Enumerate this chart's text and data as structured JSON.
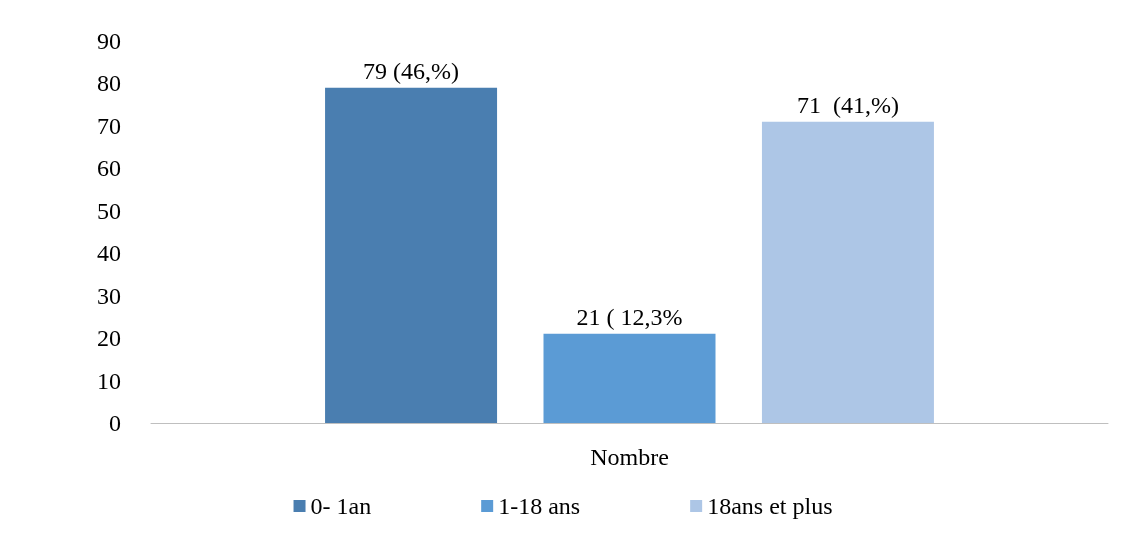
{
  "chart_data": {
    "type": "bar",
    "categories": [
      "Nombre"
    ],
    "series": [
      {
        "name": "0- 1an",
        "color": "#4a7eb0",
        "values": [
          79
        ],
        "value_labels": [
          "79 (46,%)"
        ]
      },
      {
        "name": "1-18 ans",
        "color": "#5b9bd5",
        "values": [
          21
        ],
        "value_labels": [
          "21 ( 12,3%"
        ]
      },
      {
        "name": "18ans et plus",
        "color": "#adc6e6",
        "values": [
          71
        ],
        "value_labels": [
          "71  (41,%)"
        ]
      }
    ],
    "ylim": [
      0,
      90
    ],
    "yticks": [
      0,
      10,
      20,
      30,
      40,
      50,
      60,
      70,
      80,
      90
    ],
    "grid": false,
    "legend": "bottom"
  }
}
